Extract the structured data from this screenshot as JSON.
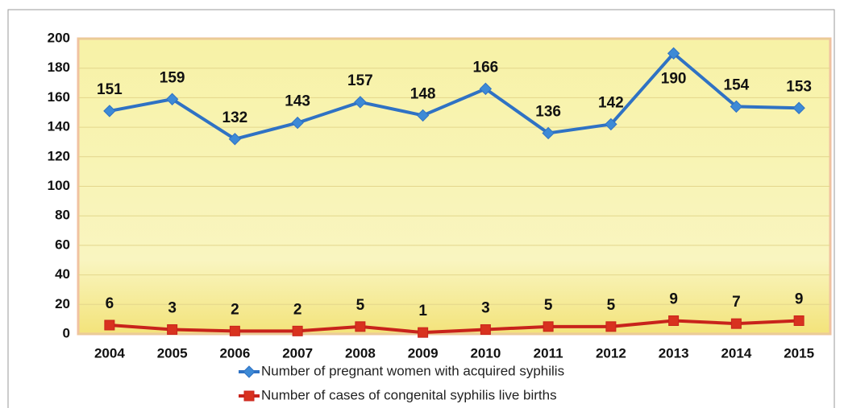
{
  "chart_data": {
    "type": "line",
    "categories": [
      "2004",
      "2005",
      "2006",
      "2007",
      "2008",
      "2009",
      "2010",
      "2011",
      "2012",
      "2013",
      "2014",
      "2015"
    ],
    "series": [
      {
        "name": "Number of pregnant women with acquired syphilis",
        "color": "#2f72c4",
        "values": [
          151,
          159,
          132,
          143,
          157,
          148,
          166,
          136,
          142,
          190,
          154,
          153
        ]
      },
      {
        "name": "Number of cases of congenital syphilis live births",
        "color": "#c8231b",
        "values": [
          6,
          3,
          2,
          2,
          5,
          1,
          3,
          5,
          5,
          9,
          7,
          9
        ]
      }
    ],
    "ylim": [
      0,
      200
    ],
    "yticks": [
      0,
      20,
      40,
      60,
      80,
      100,
      120,
      140,
      160,
      180,
      200
    ],
    "grid": true
  }
}
